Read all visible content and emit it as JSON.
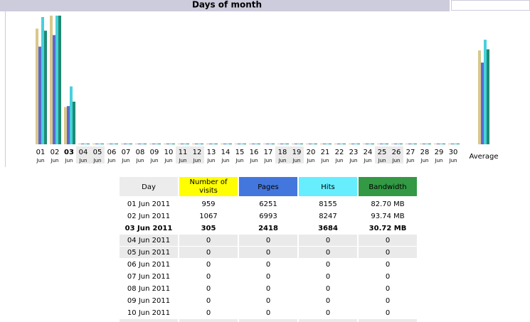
{
  "header": {
    "title": "Days of month"
  },
  "chart_data": {
    "type": "bar",
    "categories": [
      "01",
      "02",
      "03",
      "04",
      "05",
      "06",
      "07",
      "08",
      "09",
      "10",
      "11",
      "12",
      "13",
      "14",
      "15",
      "16",
      "17",
      "18",
      "19",
      "20",
      "21",
      "22",
      "23",
      "24",
      "25",
      "26",
      "27",
      "28",
      "29",
      "30"
    ],
    "sublabel": "Jun",
    "weekend": [
      "04",
      "05",
      "11",
      "12",
      "18",
      "19",
      "25",
      "26"
    ],
    "bold": "03",
    "series": [
      {
        "color": "#d8c88c",
        "values": [
          959,
          1067,
          305,
          0,
          0,
          0,
          0,
          0,
          0,
          0,
          0,
          0,
          0,
          0,
          0,
          0,
          0,
          0,
          0,
          0,
          0,
          0,
          0,
          0,
          0,
          0,
          0,
          0,
          0,
          0
        ]
      },
      {
        "color": "#5a6ad0",
        "values": [
          6251,
          6993,
          2418,
          0,
          0,
          0,
          0,
          0,
          0,
          0,
          0,
          0,
          0,
          0,
          0,
          0,
          0,
          0,
          0,
          0,
          0,
          0,
          0,
          0,
          0,
          0,
          0,
          0,
          0,
          0
        ]
      },
      {
        "color": "#48d0dc",
        "values": [
          8155,
          8247,
          3684,
          0,
          0,
          0,
          0,
          0,
          0,
          0,
          0,
          0,
          0,
          0,
          0,
          0,
          0,
          0,
          0,
          0,
          0,
          0,
          0,
          0,
          0,
          0,
          0,
          0,
          0,
          0
        ]
      },
      {
        "color": "#1f8a72",
        "values": [
          82.7,
          93.74,
          30.72,
          0,
          0,
          0,
          0,
          0,
          0,
          0,
          0,
          0,
          0,
          0,
          0,
          0,
          0,
          0,
          0,
          0,
          0,
          0,
          0,
          0,
          0,
          0,
          0,
          0,
          0,
          0
        ]
      }
    ],
    "average": {
      "label": "Average",
      "values": [
        777,
        5220.67,
        6695.33,
        69.05
      ]
    }
  },
  "table": {
    "header": [
      "Day",
      "Number of visits",
      "Pages",
      "Hits",
      "Bandwidth"
    ],
    "header_colors": [
      "#ececec",
      "#ffff00",
      "#4477dd",
      "#66eeff",
      "#339944"
    ],
    "weekend": [
      "04 Jun 2011",
      "05 Jun 2011"
    ],
    "bold": "03 Jun 2011",
    "rows": [
      [
        "01 Jun 2011",
        "959",
        "6251",
        "8155",
        "82.70 MB"
      ],
      [
        "02 Jun 2011",
        "1067",
        "6993",
        "8247",
        "93.74 MB"
      ],
      [
        "03 Jun 2011",
        "305",
        "2418",
        "3684",
        "30.72 MB"
      ],
      [
        "04 Jun 2011",
        "0",
        "0",
        "0",
        "0"
      ],
      [
        "05 Jun 2011",
        "0",
        "0",
        "0",
        "0"
      ],
      [
        "06 Jun 2011",
        "0",
        "0",
        "0",
        "0"
      ],
      [
        "07 Jun 2011",
        "0",
        "0",
        "0",
        "0"
      ],
      [
        "08 Jun 2011",
        "0",
        "0",
        "0",
        "0"
      ],
      [
        "09 Jun 2011",
        "0",
        "0",
        "0",
        "0"
      ],
      [
        "10 Jun 2011",
        "0",
        "0",
        "0",
        "0"
      ]
    ]
  }
}
